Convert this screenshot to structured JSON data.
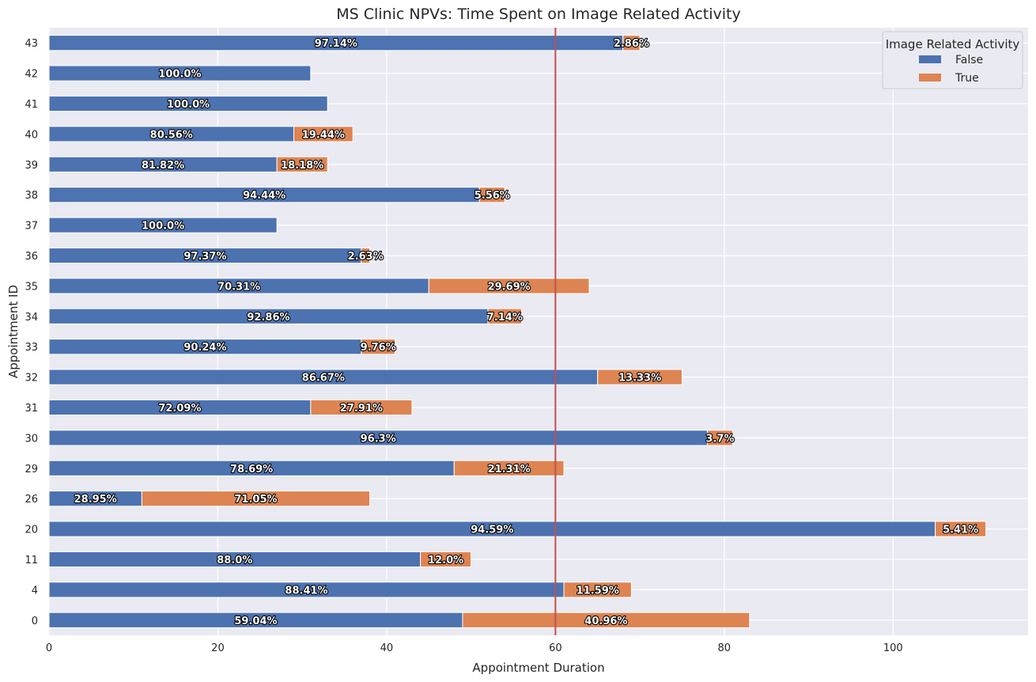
{
  "chart_data": {
    "type": "bar",
    "orientation": "horizontal",
    "stacked": true,
    "title": "MS Clinic NPVs: Time Spent on Image Related Activity",
    "xlabel": "Appointment Duration",
    "ylabel": "Appointment ID",
    "xlim": [
      0,
      116
    ],
    "xticks": [
      0,
      20,
      40,
      60,
      80,
      100
    ],
    "reference_line_x": 60,
    "grid": true,
    "legend": {
      "title": "Image Related Activity",
      "position": "top-right"
    },
    "categories": [
      "0",
      "4",
      "11",
      "20",
      "26",
      "29",
      "30",
      "31",
      "32",
      "33",
      "34",
      "35",
      "36",
      "37",
      "38",
      "39",
      "40",
      "41",
      "42",
      "43"
    ],
    "series": [
      {
        "name": "False",
        "color": "#4c72b0",
        "values": [
          49,
          61,
          44,
          105,
          11,
          48,
          78,
          31,
          65,
          37,
          52,
          45,
          37,
          27,
          51,
          27,
          29,
          33,
          31,
          68
        ],
        "labels": [
          "59.04%",
          "88.41%",
          "88.0%",
          "94.59%",
          "28.95%",
          "78.69%",
          "96.3%",
          "72.09%",
          "86.67%",
          "90.24%",
          "92.86%",
          "70.31%",
          "97.37%",
          "100.0%",
          "94.44%",
          "81.82%",
          "80.56%",
          "100.0%",
          "100.0%",
          "97.14%"
        ]
      },
      {
        "name": "True",
        "color": "#dd8452",
        "values": [
          34,
          8,
          6,
          6,
          27,
          13,
          3,
          12,
          10,
          4,
          4,
          19,
          1,
          0,
          3,
          6,
          7,
          0,
          0,
          2
        ],
        "labels": [
          "40.96%",
          "11.59%",
          "12.0%",
          "5.41%",
          "71.05%",
          "21.31%",
          "3.7%",
          "27.91%",
          "13.33%",
          "9.76%",
          "7.14%",
          "29.69%",
          "2.63%",
          "",
          "5.56%",
          "18.18%",
          "19.44%",
          "",
          "",
          "2.86%"
        ]
      }
    ],
    "style": {
      "background": "#eaeaf2",
      "grid_color": "#ffffff",
      "ref_line_color": "#c44e52"
    }
  }
}
